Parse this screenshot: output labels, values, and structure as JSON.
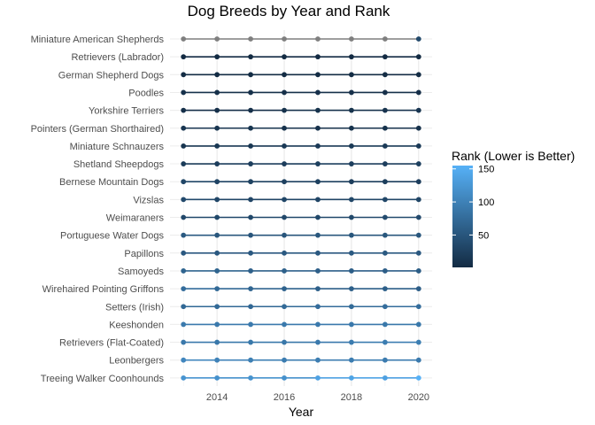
{
  "chart_data": {
    "type": "line",
    "title": "Dog Breeds by Year and Rank",
    "xlabel": "Year",
    "ylabel": "",
    "x": [
      2013,
      2014,
      2015,
      2016,
      2017,
      2018,
      2019,
      2020
    ],
    "x_ticks": [
      2014,
      2016,
      2018,
      2020
    ],
    "xlim": [
      2012.6,
      2020.4
    ],
    "grid": true,
    "legend": {
      "title": "Rank (Lower is Better)",
      "position": "right",
      "type": "colorbar",
      "ticks": [
        50,
        100,
        150
      ],
      "range": [
        1,
        155
      ],
      "color_low": "#132b43",
      "color_high": "#56b1f7"
    },
    "na_color": "#7f7f7f",
    "series": [
      {
        "name": "Miniature American Shepherds",
        "values": [
          null,
          null,
          null,
          null,
          null,
          null,
          null,
          35
        ]
      },
      {
        "name": "Retrievers (Labrador)",
        "values": [
          1,
          1,
          1,
          1,
          1,
          1,
          1,
          1
        ]
      },
      {
        "name": "German Shepherd Dogs",
        "values": [
          2,
          2,
          2,
          2,
          2,
          2,
          3,
          3
        ]
      },
      {
        "name": "Poodles",
        "values": [
          8,
          7,
          7,
          7,
          7,
          7,
          7,
          5
        ]
      },
      {
        "name": "Yorkshire Terriers",
        "values": [
          6,
          6,
          6,
          9,
          9,
          9,
          10,
          13
        ]
      },
      {
        "name": "Pointers (German Shorthaired)",
        "values": [
          13,
          12,
          11,
          9,
          8,
          9,
          9,
          8
        ]
      },
      {
        "name": "Miniature Schnauzers",
        "values": [
          12,
          15,
          15,
          17,
          17,
          18,
          18,
          18
        ]
      },
      {
        "name": "Shetland Sheepdogs",
        "values": [
          20,
          22,
          23,
          22,
          24,
          23,
          23,
          25
        ]
      },
      {
        "name": "Bernese Mountain Dogs",
        "values": [
          32,
          29,
          27,
          26,
          25,
          22,
          22,
          22
        ]
      },
      {
        "name": "Vizslas",
        "values": [
          36,
          32,
          31,
          32,
          31,
          33,
          33,
          31
        ]
      },
      {
        "name": "Weimaraners",
        "values": [
          34,
          34,
          34,
          34,
          34,
          35,
          38,
          37
        ]
      },
      {
        "name": "Portuguese Water Dogs",
        "values": [
          54,
          51,
          49,
          49,
          51,
          50,
          51,
          51
        ]
      },
      {
        "name": "Papillons",
        "values": [
          53,
          53,
          53,
          54,
          53,
          54,
          54,
          53
        ]
      },
      {
        "name": "Samoyeds",
        "values": [
          66,
          66,
          62,
          63,
          60,
          59,
          59,
          58
        ]
      },
      {
        "name": "Wirehaired Pointing Griffons",
        "values": [
          76,
          72,
          68,
          64,
          61,
          61,
          61,
          59
        ]
      },
      {
        "name": "Setters (Irish)",
        "values": [
          71,
          72,
          70,
          73,
          76,
          74,
          77,
          77
        ]
      },
      {
        "name": "Keeshonden",
        "values": [
          92,
          91,
          92,
          91,
          91,
          90,
          89,
          89
        ]
      },
      {
        "name": "Retrievers (Flat-Coated)",
        "values": [
          90,
          89,
          89,
          88,
          91,
          93,
          95,
          96
        ]
      },
      {
        "name": "Leonbergers",
        "values": [
          106,
          101,
          97,
          94,
          95,
          94,
          93,
          92
        ]
      },
      {
        "name": "Treeing Walker Coonhounds",
        "values": [
          122,
          118,
          120,
          118,
          138,
          140,
          136,
          155
        ]
      }
    ]
  }
}
